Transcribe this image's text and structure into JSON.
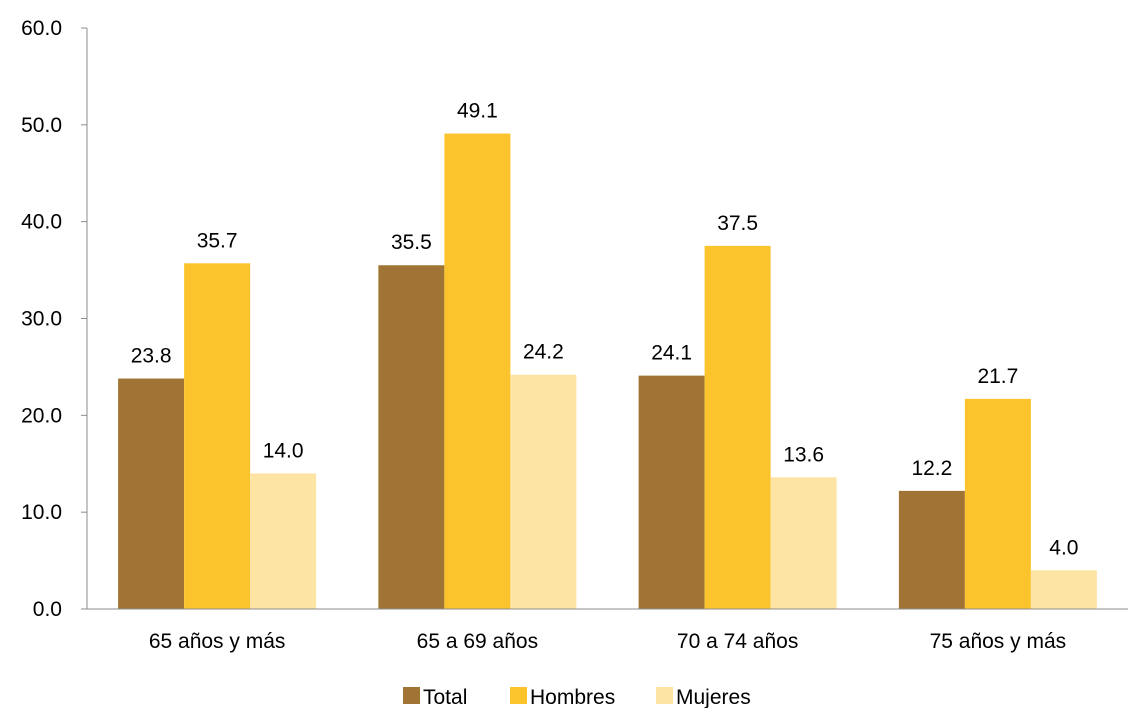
{
  "chart_data": {
    "type": "bar",
    "title": "",
    "xlabel": "",
    "ylabel": "",
    "categories": [
      "65 años y más",
      "65 a 69 años",
      "70 a 74 años",
      "75 años y más"
    ],
    "series": [
      {
        "name": "Total",
        "values": [
          23.8,
          35.5,
          24.1,
          12.2
        ],
        "color": "#A07434"
      },
      {
        "name": "Hombres",
        "values": [
          35.7,
          49.1,
          37.5,
          21.7
        ],
        "color": "#FCC42C"
      },
      {
        "name": "Mujeres",
        "values": [
          14.0,
          24.2,
          13.6,
          4.0
        ],
        "color": "#FDE3A4"
      }
    ],
    "ylim": [
      0,
      60
    ],
    "yticks": [
      "0.0",
      "10.0",
      "20.0",
      "30.0",
      "40.0",
      "50.0",
      "60.0"
    ],
    "data_labels": true,
    "grid": false,
    "legend_position": "bottom"
  }
}
